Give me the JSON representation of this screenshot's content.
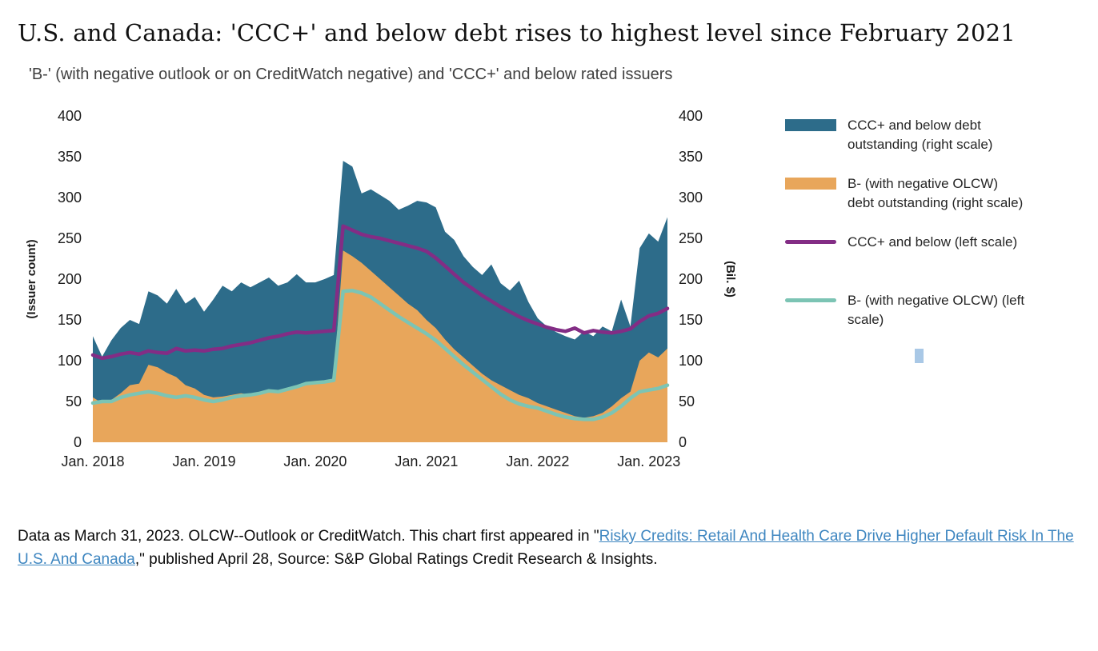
{
  "page": {
    "title": "U.S. and Canada: 'CCC+' and below debt rises to highest level since February 2021",
    "subtitle": "'B-' (with negative outlook or on CreditWatch negative) and 'CCC+' and below rated issuers"
  },
  "colors": {
    "ccc_area": "#2d6c8a",
    "b_area": "#e8a65b",
    "ccc_line": "#832d85",
    "b_line": "#7cc4b4",
    "link": "#3e86c0",
    "subtitle_text": "#404040",
    "axis_text": "#1c1c1c",
    "artifact": "#a9c8e6"
  },
  "legend": [
    {
      "type": "area",
      "color_key": "ccc_area",
      "label": "CCC+ and below debt outstanding (right scale)"
    },
    {
      "type": "area",
      "color_key": "b_area",
      "label": "B- (with negative OLCW) debt outstanding (right scale)"
    },
    {
      "type": "line",
      "color_key": "ccc_line",
      "label": "CCC+ and below (left scale)"
    },
    {
      "type": "line",
      "color_key": "b_line",
      "label": "B- (with negative OLCW) (left scale)"
    }
  ],
  "chart_data": {
    "type": "area",
    "subtype": "combo-area-line",
    "x_unit": "month",
    "x_start": "2018-01",
    "x_end": "2023-03",
    "x_tick_labels": [
      "Jan. 2018",
      "Jan. 2019",
      "Jan. 2020",
      "Jan. 2021",
      "Jan. 2022",
      "Jan. 2023"
    ],
    "x_tick_indices": [
      0,
      12,
      24,
      36,
      48,
      60
    ],
    "left_axis": {
      "label": "(Issuer count)",
      "min": 0,
      "max": 400,
      "step": 50
    },
    "right_axis": {
      "label": "(Bil. $)",
      "min": 0,
      "max": 400,
      "step": 50
    },
    "grid": false,
    "legend_position": "right",
    "series": [
      {
        "id": "ccc-debt-outstanding",
        "name": "CCC+ and below debt outstanding (right scale)",
        "type": "area",
        "axis": "right",
        "color_key": "ccc_area",
        "values": [
          130,
          105,
          125,
          140,
          150,
          145,
          185,
          180,
          170,
          188,
          170,
          178,
          160,
          175,
          192,
          185,
          196,
          190,
          196,
          202,
          192,
          196,
          206,
          196,
          196,
          200,
          205,
          345,
          338,
          305,
          310,
          303,
          296,
          285,
          290,
          296,
          294,
          288,
          258,
          248,
          228,
          215,
          205,
          218,
          195,
          186,
          198,
          172,
          152,
          142,
          135,
          130,
          126,
          136,
          130,
          142,
          136,
          175,
          142,
          238,
          256,
          246,
          276
        ]
      },
      {
        "id": "b-debt-outstanding",
        "name": "B- (with negative OLCW) debt outstanding (right scale)",
        "type": "area",
        "axis": "right",
        "color_key": "b_area",
        "values": [
          55,
          48,
          52,
          60,
          70,
          72,
          95,
          92,
          85,
          80,
          70,
          66,
          58,
          55,
          56,
          58,
          60,
          58,
          60,
          62,
          60,
          64,
          68,
          70,
          72,
          74,
          78,
          235,
          228,
          220,
          210,
          200,
          190,
          180,
          170,
          162,
          150,
          140,
          126,
          114,
          104,
          94,
          84,
          76,
          70,
          64,
          58,
          54,
          48,
          44,
          40,
          36,
          32,
          30,
          32,
          36,
          44,
          54,
          62,
          100,
          110,
          104,
          115
        ]
      },
      {
        "id": "ccc-issuer-count",
        "name": "CCC+ and below (left scale)",
        "type": "line",
        "axis": "left",
        "color_key": "ccc_line",
        "values": [
          107,
          103,
          105,
          108,
          110,
          108,
          112,
          110,
          109,
          115,
          112,
          113,
          112,
          114,
          115,
          118,
          120,
          122,
          125,
          128,
          130,
          133,
          135,
          134,
          135,
          136,
          137,
          265,
          260,
          255,
          252,
          250,
          247,
          244,
          241,
          238,
          234,
          226,
          216,
          206,
          196,
          188,
          180,
          173,
          166,
          160,
          154,
          149,
          145,
          141,
          138,
          136,
          140,
          134,
          137,
          135,
          134,
          136,
          139,
          148,
          155,
          158,
          164
        ]
      },
      {
        "id": "b-issuer-count",
        "name": "B- (with negative OLCW) (left scale)",
        "type": "line",
        "axis": "left",
        "color_key": "b_line",
        "values": [
          48,
          50,
          50,
          55,
          58,
          60,
          62,
          60,
          57,
          55,
          57,
          55,
          52,
          50,
          52,
          55,
          57,
          58,
          60,
          63,
          62,
          65,
          68,
          72,
          73,
          74,
          76,
          185,
          186,
          183,
          178,
          170,
          162,
          154,
          147,
          140,
          133,
          125,
          115,
          105,
          95,
          86,
          77,
          68,
          59,
          52,
          47,
          44,
          42,
          38,
          34,
          31,
          29,
          28,
          28,
          31,
          36,
          44,
          54,
          62,
          64,
          66,
          70
        ]
      }
    ]
  },
  "footnote": {
    "pre_link": "Data as March 31, 2023. OLCW--Outlook or CreditWatch. This chart first appeared in \"",
    "link_text": "Risky Credits: Retail And Health Care Drive Higher Default Risk In The U.S. And Canada",
    "post_link": ",\" published April 28, Source: S&P Global Ratings Credit Research & Insights."
  }
}
